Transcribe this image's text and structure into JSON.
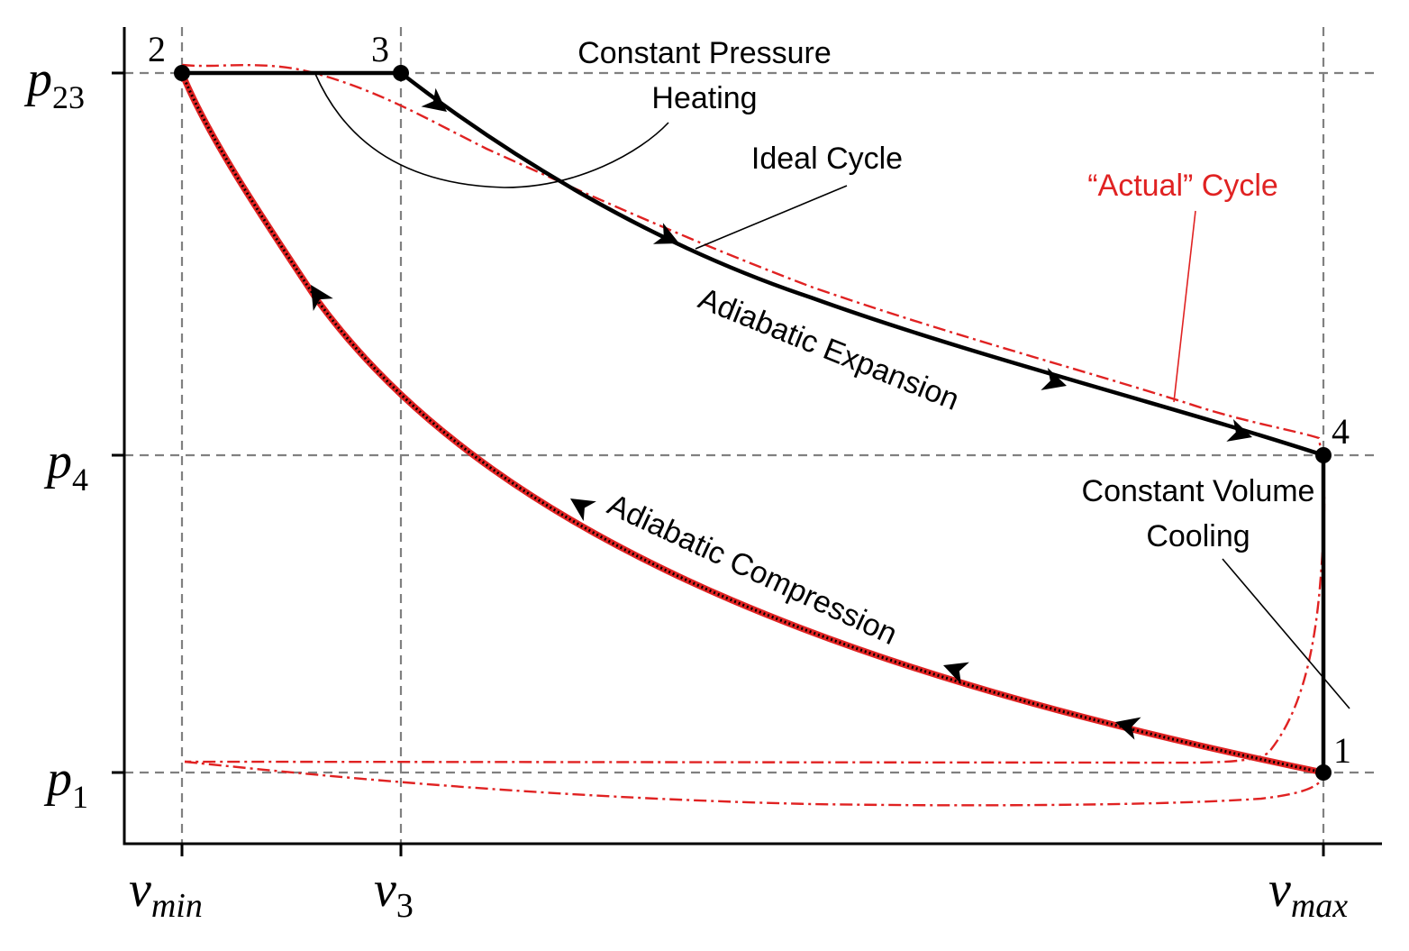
{
  "points": {
    "p1_label": "1",
    "p2_label": "2",
    "p3_label": "3",
    "p4_label": "4"
  },
  "axes": {
    "y_ticks": {
      "p23": {
        "base": "p",
        "sub": "23"
      },
      "p4": {
        "base": "p",
        "sub": "4"
      },
      "p1": {
        "base": "p",
        "sub": "1"
      }
    },
    "x_ticks": {
      "vmin": {
        "base": "v",
        "sub": "min"
      },
      "v3": {
        "base": "v",
        "sub": "3"
      },
      "vmax": {
        "base": "v",
        "sub": "max"
      }
    }
  },
  "labels": {
    "constant_pressure_line1": "Constant Pressure",
    "constant_pressure_line2": "Heating",
    "ideal_cycle": "Ideal Cycle",
    "actual_cycle": "“Actual” Cycle",
    "adiabatic_expansion": "Adiabatic Expansion",
    "adiabatic_compression": "Adiabatic Compression",
    "constant_volume_line1": "Constant Volume",
    "constant_volume_line2": "Cooling"
  },
  "colors": {
    "ideal": "#000000",
    "actual": "#e02222",
    "grid": "#808080"
  }
}
